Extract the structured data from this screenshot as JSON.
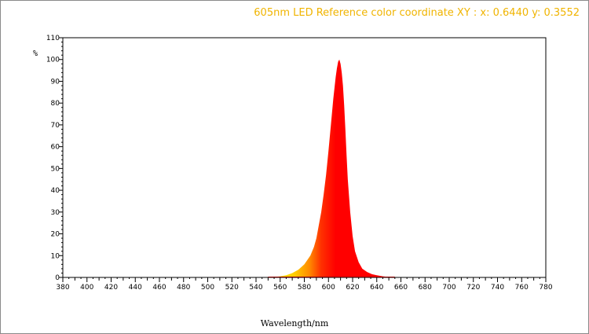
{
  "header": {
    "title": "605nm LED Reference color coordinate XY :  x: 0.6440  y: 0.3552"
  },
  "colors": {
    "title": "#f0b400",
    "peak": "#ff0000",
    "low_tail": "#ffe800"
  },
  "chart_data": {
    "type": "area",
    "title": "605nm LED Reference color coordinate XY :  x: 0.6440  y: 0.3552",
    "xlabel": "Wavelength/nm",
    "ylabel": "%",
    "xlim": [
      380,
      780
    ],
    "ylim": [
      0,
      110
    ],
    "xticks": [
      380,
      400,
      420,
      440,
      460,
      480,
      500,
      520,
      540,
      560,
      580,
      600,
      620,
      640,
      660,
      680,
      700,
      720,
      740,
      760,
      780
    ],
    "yticks": [
      0,
      10,
      20,
      30,
      40,
      50,
      60,
      70,
      80,
      90,
      100,
      110
    ],
    "grid": false,
    "legend": "none",
    "series": [
      {
        "x": [
          550,
          555,
          560,
          565,
          570,
          575,
          580,
          585,
          588,
          590,
          592,
          594,
          596,
          598,
          600,
          602,
          604,
          606,
          607,
          608,
          609,
          610,
          611,
          612,
          613,
          614,
          615,
          616,
          618,
          620,
          622,
          625,
          628,
          632,
          636,
          640,
          645,
          650,
          655
        ],
        "values": [
          0,
          0.2,
          0.5,
          1,
          2,
          3.5,
          6,
          10,
          14,
          18,
          24,
          30,
          38,
          47,
          58,
          70,
          82,
          92,
          96,
          99,
          100,
          98,
          94,
          88,
          79,
          68,
          56,
          45,
          30,
          19,
          12,
          7,
          4,
          2.5,
          1.5,
          1,
          0.5,
          0.2,
          0
        ]
      }
    ]
  }
}
